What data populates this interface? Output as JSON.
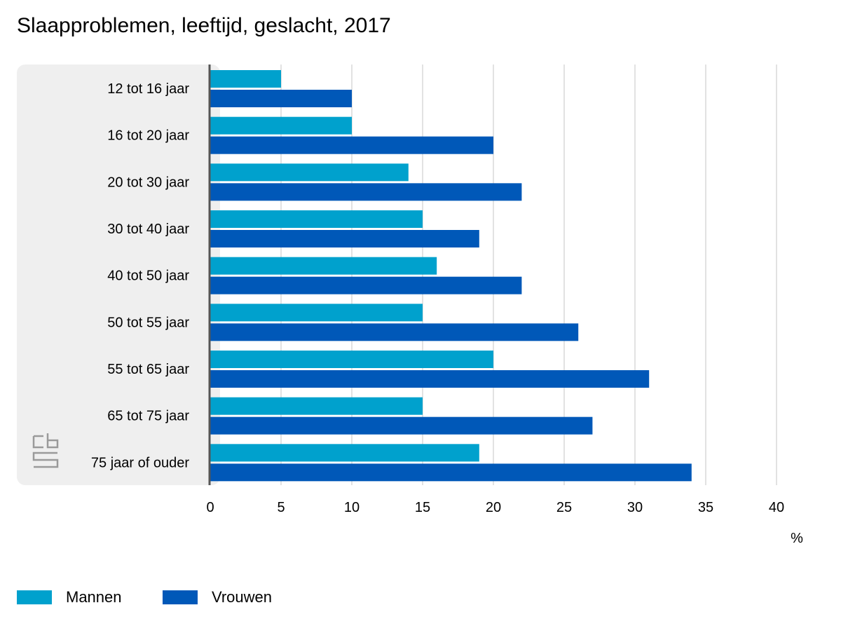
{
  "chart_data": {
    "type": "bar",
    "orientation": "horizontal",
    "title": "Slaapproblemen, leeftijd, geslacht, 2017",
    "xlabel": "%",
    "ylabel": "",
    "xlim": [
      0,
      40
    ],
    "x_ticks": [
      "0",
      "5",
      "10",
      "15",
      "20",
      "25",
      "30",
      "35",
      "40"
    ],
    "grid": "vertical",
    "legend_position": "bottom-left",
    "categories": [
      "12 tot 16 jaar",
      "16 tot 20 jaar",
      "20 tot 30 jaar",
      "30 tot 40 jaar",
      "40 tot 50 jaar",
      "50 tot 55 jaar",
      "55 tot 65 jaar",
      "65 tot 75 jaar",
      "75 jaar of ouder"
    ],
    "series": [
      {
        "name": "Mannen",
        "color": "#00A1CD",
        "values": [
          5,
          10,
          14,
          15,
          16,
          15,
          20,
          15,
          19
        ]
      },
      {
        "name": "Vrouwen",
        "color": "#0058B8",
        "values": [
          10,
          20,
          22,
          19,
          22,
          26,
          31,
          27,
          34
        ]
      }
    ]
  },
  "logo": {
    "icon": "cbs-logo-icon",
    "text": "cbs"
  }
}
